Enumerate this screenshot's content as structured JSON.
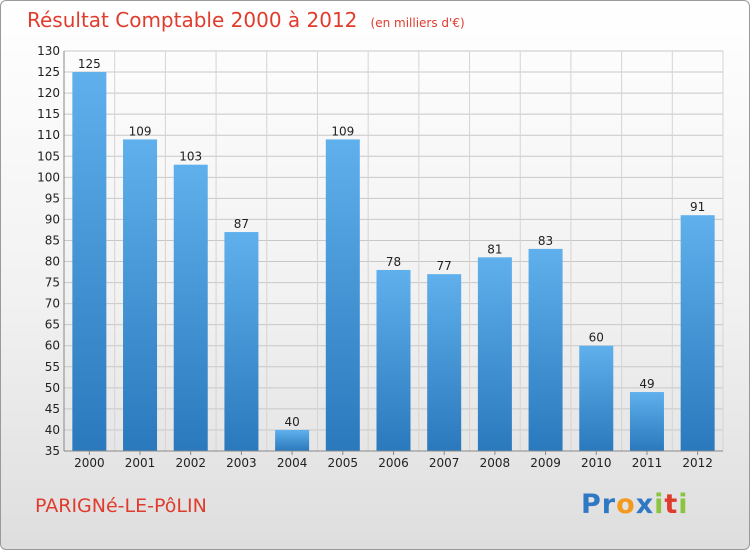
{
  "chart_data": {
    "type": "bar",
    "title": "Résultat Comptable 2000 à 2012",
    "unit": "(en milliers d'€)",
    "categories": [
      "2000",
      "2001",
      "2002",
      "2003",
      "2004",
      "2005",
      "2006",
      "2007",
      "2008",
      "2009",
      "2010",
      "2011",
      "2012"
    ],
    "values": [
      125,
      109,
      103,
      87,
      40,
      109,
      78,
      77,
      81,
      83,
      60,
      49,
      91
    ],
    "ylim": [
      35,
      130
    ],
    "yticks": [
      35,
      40,
      45,
      50,
      55,
      60,
      65,
      70,
      75,
      80,
      85,
      90,
      95,
      100,
      105,
      110,
      115,
      120,
      125,
      130
    ],
    "grid": true,
    "bar_color": "#3a8fd6"
  },
  "footer": {
    "location": "PARIGNé-LE-PôLIN",
    "logo_letters": [
      {
        "ch": "P",
        "color": "#2f78c4"
      },
      {
        "ch": "r",
        "color": "#2f78c4"
      },
      {
        "ch": "o",
        "color": "#f39a1e"
      },
      {
        "ch": "x",
        "color": "#2f78c4"
      },
      {
        "ch": "i",
        "color": "#8cc43f"
      },
      {
        "ch": "t",
        "color": "#e03c2d"
      },
      {
        "ch": "i",
        "color": "#8cc43f"
      }
    ]
  }
}
